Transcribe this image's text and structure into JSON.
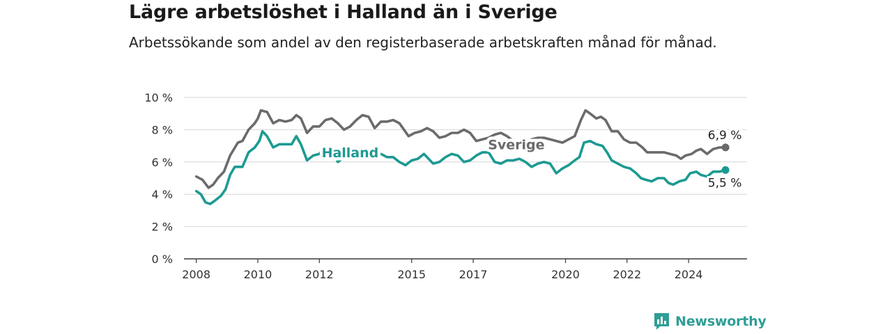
{
  "title": "Lägre arbetslöshet i Halland än i Sverige",
  "subtitle": "Arbetssökande som andel av den registerbaserade arbetskraften månad för månad.",
  "brand": {
    "name": "Newsworthy",
    "icon": "newsworthy-chart-logo-icon",
    "color": "#2e9e97"
  },
  "chart_data": {
    "type": "line",
    "x_unit": "year",
    "ylim": [
      0,
      10
    ],
    "xlim": [
      2007.6,
      2025.9
    ],
    "yticks": [
      0,
      2,
      4,
      6,
      8,
      10
    ],
    "ytick_labels": [
      "0 %",
      "2 %",
      "4 %",
      "6 %",
      "8 %",
      "10 %"
    ],
    "xtick_labels": [
      "2008",
      "2010",
      "2012",
      "2015",
      "2017",
      "2020",
      "2022",
      "2024"
    ],
    "grid": true,
    "series": [
      {
        "name": "Sverige",
        "color": "#6b6b6e",
        "label_at": 2018.4,
        "end_label": "6,9 %",
        "points": [
          [
            2008.0,
            5.1
          ],
          [
            2008.2,
            4.9
          ],
          [
            2008.4,
            4.4
          ],
          [
            2008.55,
            4.6
          ],
          [
            2008.7,
            5.0
          ],
          [
            2008.9,
            5.4
          ],
          [
            2009.1,
            6.4
          ],
          [
            2009.35,
            7.2
          ],
          [
            2009.5,
            7.3
          ],
          [
            2009.7,
            8.0
          ],
          [
            2009.9,
            8.4
          ],
          [
            2010.0,
            8.7
          ],
          [
            2010.1,
            9.2
          ],
          [
            2010.3,
            9.1
          ],
          [
            2010.5,
            8.4
          ],
          [
            2010.7,
            8.6
          ],
          [
            2010.9,
            8.5
          ],
          [
            2011.1,
            8.6
          ],
          [
            2011.25,
            8.9
          ],
          [
            2011.4,
            8.7
          ],
          [
            2011.6,
            7.8
          ],
          [
            2011.8,
            8.2
          ],
          [
            2012.0,
            8.2
          ],
          [
            2012.2,
            8.6
          ],
          [
            2012.4,
            8.7
          ],
          [
            2012.6,
            8.4
          ],
          [
            2012.8,
            8.0
          ],
          [
            2013.0,
            8.2
          ],
          [
            2013.2,
            8.6
          ],
          [
            2013.4,
            8.9
          ],
          [
            2013.6,
            8.8
          ],
          [
            2013.8,
            8.1
          ],
          [
            2014.0,
            8.5
          ],
          [
            2014.2,
            8.5
          ],
          [
            2014.4,
            8.6
          ],
          [
            2014.6,
            8.4
          ],
          [
            2014.9,
            7.6
          ],
          [
            2015.1,
            7.8
          ],
          [
            2015.3,
            7.9
          ],
          [
            2015.5,
            8.1
          ],
          [
            2015.7,
            7.9
          ],
          [
            2015.9,
            7.5
          ],
          [
            2016.1,
            7.6
          ],
          [
            2016.3,
            7.8
          ],
          [
            2016.5,
            7.8
          ],
          [
            2016.7,
            8.0
          ],
          [
            2016.9,
            7.8
          ],
          [
            2017.1,
            7.3
          ],
          [
            2017.3,
            7.4
          ],
          [
            2017.5,
            7.5
          ],
          [
            2017.7,
            7.7
          ],
          [
            2017.9,
            7.8
          ],
          [
            2018.1,
            7.6
          ],
          [
            2018.3,
            7.3
          ],
          [
            2018.5,
            7.1
          ],
          [
            2018.7,
            7.3
          ],
          [
            2018.9,
            7.4
          ],
          [
            2019.1,
            7.5
          ],
          [
            2019.3,
            7.5
          ],
          [
            2019.5,
            7.4
          ],
          [
            2019.7,
            7.3
          ],
          [
            2019.9,
            7.2
          ],
          [
            2020.1,
            7.4
          ],
          [
            2020.3,
            7.6
          ],
          [
            2020.5,
            8.6
          ],
          [
            2020.65,
            9.2
          ],
          [
            2020.8,
            9.0
          ],
          [
            2021.0,
            8.7
          ],
          [
            2021.15,
            8.8
          ],
          [
            2021.3,
            8.6
          ],
          [
            2021.5,
            7.9
          ],
          [
            2021.7,
            7.9
          ],
          [
            2021.9,
            7.4
          ],
          [
            2022.1,
            7.2
          ],
          [
            2022.3,
            7.2
          ],
          [
            2022.5,
            6.9
          ],
          [
            2022.65,
            6.6
          ],
          [
            2022.8,
            6.6
          ],
          [
            2023.0,
            6.6
          ],
          [
            2023.2,
            6.6
          ],
          [
            2023.4,
            6.5
          ],
          [
            2023.6,
            6.4
          ],
          [
            2023.75,
            6.2
          ],
          [
            2023.9,
            6.4
          ],
          [
            2024.1,
            6.5
          ],
          [
            2024.25,
            6.7
          ],
          [
            2024.4,
            6.8
          ],
          [
            2024.6,
            6.5
          ],
          [
            2024.8,
            6.8
          ],
          [
            2025.0,
            6.9
          ],
          [
            2025.2,
            6.9
          ]
        ]
      },
      {
        "name": "Halland",
        "color": "#1c9a92",
        "label_at": 2013.0,
        "end_label": "5,5 %",
        "points": [
          [
            2008.0,
            4.2
          ],
          [
            2008.15,
            4.0
          ],
          [
            2008.3,
            3.5
          ],
          [
            2008.45,
            3.4
          ],
          [
            2008.6,
            3.6
          ],
          [
            2008.8,
            3.9
          ],
          [
            2008.95,
            4.3
          ],
          [
            2009.1,
            5.2
          ],
          [
            2009.25,
            5.7
          ],
          [
            2009.5,
            5.7
          ],
          [
            2009.7,
            6.6
          ],
          [
            2009.9,
            6.9
          ],
          [
            2010.05,
            7.3
          ],
          [
            2010.15,
            7.9
          ],
          [
            2010.3,
            7.6
          ],
          [
            2010.5,
            6.9
          ],
          [
            2010.7,
            7.1
          ],
          [
            2010.9,
            7.1
          ],
          [
            2011.1,
            7.1
          ],
          [
            2011.25,
            7.6
          ],
          [
            2011.4,
            7.1
          ],
          [
            2011.6,
            6.1
          ],
          [
            2011.8,
            6.4
          ],
          [
            2012.0,
            6.5
          ],
          [
            2012.2,
            7.0
          ],
          [
            2012.4,
            6.7
          ],
          [
            2012.6,
            6.0
          ],
          [
            2012.8,
            6.3
          ],
          [
            2013.0,
            6.6
          ],
          [
            2013.2,
            6.8
          ],
          [
            2013.4,
            6.6
          ],
          [
            2013.6,
            6.7
          ],
          [
            2013.8,
            6.4
          ],
          [
            2014.0,
            6.5
          ],
          [
            2014.2,
            6.3
          ],
          [
            2014.4,
            6.3
          ],
          [
            2014.6,
            6.0
          ],
          [
            2014.8,
            5.8
          ],
          [
            2015.0,
            6.1
          ],
          [
            2015.2,
            6.2
          ],
          [
            2015.4,
            6.5
          ],
          [
            2015.55,
            6.2
          ],
          [
            2015.7,
            5.9
          ],
          [
            2015.9,
            6.0
          ],
          [
            2016.1,
            6.3
          ],
          [
            2016.3,
            6.5
          ],
          [
            2016.5,
            6.4
          ],
          [
            2016.7,
            6.0
          ],
          [
            2016.9,
            6.1
          ],
          [
            2017.1,
            6.4
          ],
          [
            2017.3,
            6.6
          ],
          [
            2017.5,
            6.6
          ],
          [
            2017.7,
            6.0
          ],
          [
            2017.9,
            5.9
          ],
          [
            2018.1,
            6.1
          ],
          [
            2018.3,
            6.1
          ],
          [
            2018.5,
            6.2
          ],
          [
            2018.7,
            6.0
          ],
          [
            2018.9,
            5.7
          ],
          [
            2019.1,
            5.9
          ],
          [
            2019.3,
            6.0
          ],
          [
            2019.5,
            5.9
          ],
          [
            2019.7,
            5.3
          ],
          [
            2019.9,
            5.6
          ],
          [
            2020.1,
            5.8
          ],
          [
            2020.3,
            6.1
          ],
          [
            2020.45,
            6.3
          ],
          [
            2020.6,
            7.2
          ],
          [
            2020.8,
            7.3
          ],
          [
            2021.0,
            7.1
          ],
          [
            2021.2,
            7.0
          ],
          [
            2021.35,
            6.6
          ],
          [
            2021.5,
            6.1
          ],
          [
            2021.7,
            5.9
          ],
          [
            2021.9,
            5.7
          ],
          [
            2022.1,
            5.6
          ],
          [
            2022.3,
            5.3
          ],
          [
            2022.45,
            5.0
          ],
          [
            2022.6,
            4.9
          ],
          [
            2022.8,
            4.8
          ],
          [
            2023.0,
            5.0
          ],
          [
            2023.2,
            5.0
          ],
          [
            2023.35,
            4.7
          ],
          [
            2023.5,
            4.6
          ],
          [
            2023.7,
            4.8
          ],
          [
            2023.9,
            4.9
          ],
          [
            2024.05,
            5.3
          ],
          [
            2024.25,
            5.4
          ],
          [
            2024.4,
            5.2
          ],
          [
            2024.6,
            5.1
          ],
          [
            2024.8,
            5.4
          ],
          [
            2025.0,
            5.4
          ],
          [
            2025.2,
            5.5
          ]
        ]
      }
    ]
  }
}
